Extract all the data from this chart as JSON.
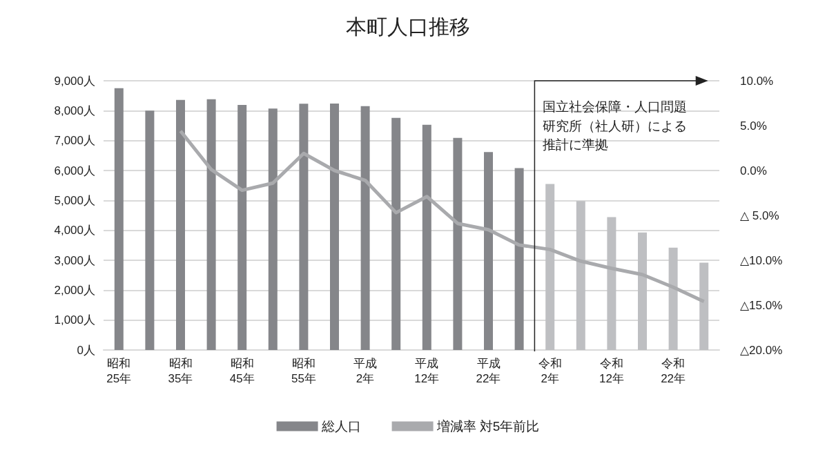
{
  "chart_data": {
    "type": "bar",
    "title": "本町人口推移",
    "categories": [
      "昭和\n25年",
      null,
      "昭和\n35年",
      null,
      "昭和\n45年",
      null,
      "昭和\n55年",
      null,
      "平成\n2年",
      null,
      "平成\n12年",
      null,
      "平成\n22年",
      null,
      "令和\n2年",
      null,
      "令和\n12年",
      null,
      "令和\n22年",
      null
    ],
    "series": [
      {
        "name": "総人口",
        "color": "#85868a",
        "colors": [
          "#85868a",
          "#85868a",
          "#85868a",
          "#85868a",
          "#85868a",
          "#85868a",
          "#85868a",
          "#85868a",
          "#85868a",
          "#85868a",
          "#85868a",
          "#85868a",
          "#85868a",
          "#85868a",
          "#bebfc2",
          "#bebfc2",
          "#bebfc2",
          "#bebfc2",
          "#bebfc2",
          "#bebfc2"
        ],
        "values": [
          8750,
          8000,
          8360,
          8380,
          8190,
          8070,
          8230,
          8240,
          8150,
          7760,
          7530,
          7090,
          6620,
          6080,
          5550,
          4980,
          4440,
          3930,
          3420,
          2920
        ]
      },
      {
        "name": "増減率 対5年前比",
        "type": "line",
        "axis": "y2",
        "color": "#a9aaad",
        "values": [
          null,
          null,
          4.4,
          0.1,
          -2.2,
          -1.4,
          1.9,
          0.0,
          -1.1,
          -4.7,
          -2.9,
          -5.9,
          -6.6,
          -8.3,
          -8.8,
          -10.1,
          -10.9,
          -11.6,
          -13.0,
          -14.6
        ]
      }
    ],
    "ylim": [
      0,
      9000
    ],
    "yticks": [
      {
        "value": 0,
        "label": "0人"
      },
      {
        "value": 1000,
        "label": "1,000人"
      },
      {
        "value": 2000,
        "label": "2,000人"
      },
      {
        "value": 3000,
        "label": "3,000人"
      },
      {
        "value": 4000,
        "label": "4,000人"
      },
      {
        "value": 5000,
        "label": "5,000人"
      },
      {
        "value": 6000,
        "label": "6,000人"
      },
      {
        "value": 7000,
        "label": "7,000人"
      },
      {
        "value": 8000,
        "label": "8,000人"
      },
      {
        "value": 9000,
        "label": "9,000人"
      }
    ],
    "y2lim": [
      -20,
      10
    ],
    "y2ticks": [
      {
        "value": -20,
        "label": "△20.0%"
      },
      {
        "value": -15,
        "label": "△15.0%"
      },
      {
        "value": -10,
        "label": "△10.0%"
      },
      {
        "value": -5,
        "label": "△ 5.0%"
      },
      {
        "value": 0,
        "label": "0.0%"
      },
      {
        "value": 5,
        "label": "5.0%"
      },
      {
        "value": 10,
        "label": "10.0%"
      }
    ],
    "annotations": [
      "国立社会保障・人口問題研究所（社人研）による推計に準拠"
    ],
    "grid": "y",
    "legend": "bottom",
    "marker": "none",
    "line_style": "solid"
  }
}
